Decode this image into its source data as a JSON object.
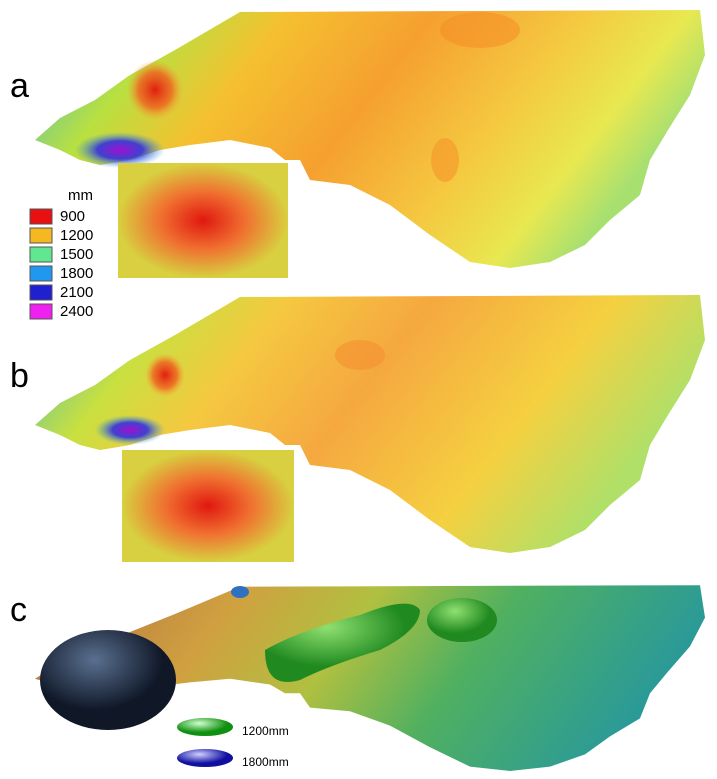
{
  "panels": [
    {
      "label": "a"
    },
    {
      "label": "b"
    },
    {
      "label": "c"
    }
  ],
  "legend": {
    "unit": "mm",
    "entries": [
      "900",
      "1200",
      "1500",
      "1800",
      "2100",
      "2400"
    ]
  },
  "legend_c": {
    "entries": [
      "1200mm",
      "1800mm"
    ]
  }
}
